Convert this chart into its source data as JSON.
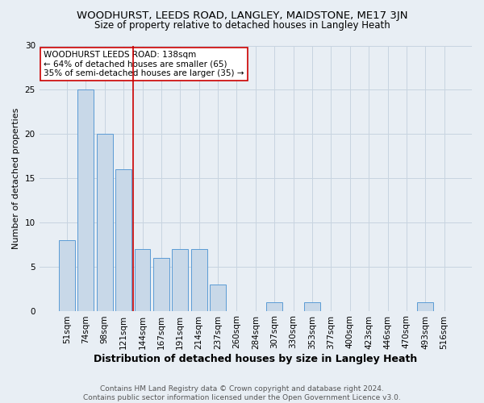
{
  "title": "WOODHURST, LEEDS ROAD, LANGLEY, MAIDSTONE, ME17 3JN",
  "subtitle": "Size of property relative to detached houses in Langley Heath",
  "xlabel": "Distribution of detached houses by size in Langley Heath",
  "ylabel": "Number of detached properties",
  "footer": "Contains HM Land Registry data © Crown copyright and database right 2024.\nContains public sector information licensed under the Open Government Licence v3.0.",
  "categories": [
    "51sqm",
    "74sqm",
    "98sqm",
    "121sqm",
    "144sqm",
    "167sqm",
    "191sqm",
    "214sqm",
    "237sqm",
    "260sqm",
    "284sqm",
    "307sqm",
    "330sqm",
    "353sqm",
    "377sqm",
    "400sqm",
    "423sqm",
    "446sqm",
    "470sqm",
    "493sqm",
    "516sqm"
  ],
  "values": [
    8,
    25,
    20,
    16,
    7,
    6,
    7,
    7,
    3,
    0,
    0,
    1,
    0,
    1,
    0,
    0,
    0,
    0,
    0,
    1,
    0
  ],
  "bar_color": "#c8d8e8",
  "bar_edge_color": "#5b9bd5",
  "grid_color": "#c8d4e0",
  "background_color": "#e8eef4",
  "annotation_line_idx": 4,
  "annotation_text": "WOODHURST LEEDS ROAD: 138sqm\n← 64% of detached houses are smaller (65)\n35% of semi-detached houses are larger (35) →",
  "annotation_box_facecolor": "#ffffff",
  "annotation_line_color": "#cc0000",
  "ylim": [
    0,
    30
  ],
  "yticks": [
    0,
    5,
    10,
    15,
    20,
    25,
    30
  ],
  "title_fontsize": 9.5,
  "subtitle_fontsize": 8.5,
  "xlabel_fontsize": 9,
  "ylabel_fontsize": 8,
  "tick_fontsize": 7.5,
  "annotation_fontsize": 7.5,
  "footer_fontsize": 6.5
}
